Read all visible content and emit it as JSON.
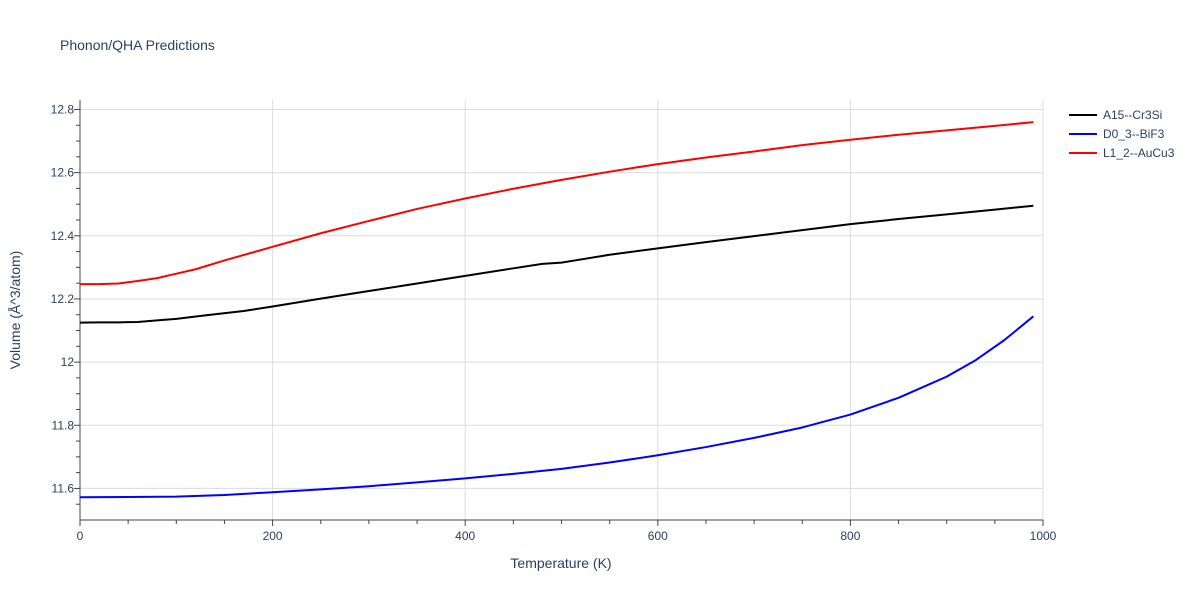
{
  "chart_data": {
    "type": "line",
    "title": "Phonon/QHA Predictions",
    "xlabel": "Temperature (K)",
    "ylabel": "Volume (Å^3/atom)",
    "xlim": [
      0,
      1000
    ],
    "ylim": [
      11.5,
      12.83
    ],
    "x_ticks": [
      0,
      200,
      400,
      600,
      800,
      1000
    ],
    "y_ticks": [
      11.6,
      11.8,
      12,
      12.2,
      12.4,
      12.6,
      12.8
    ],
    "x_tick_labels": [
      "0",
      "200",
      "400",
      "600",
      "800",
      "1000"
    ],
    "y_tick_labels": [
      "11.6",
      "11.8",
      "12",
      "12.2",
      "12.4",
      "12.6",
      "12.8"
    ],
    "grid": true,
    "legend_position": "top-right",
    "series": [
      {
        "name": "A15--Cr3Si",
        "color": "#000000",
        "x": [
          0,
          20,
          40,
          60,
          80,
          100,
          130,
          170,
          200,
          250,
          300,
          350,
          400,
          450,
          480,
          500,
          510,
          550,
          600,
          650,
          700,
          750,
          800,
          850,
          900,
          950,
          990
        ],
        "y": [
          12.125,
          12.126,
          12.126,
          12.127,
          12.132,
          12.137,
          12.148,
          12.162,
          12.176,
          12.201,
          12.225,
          12.249,
          12.273,
          12.297,
          12.311,
          12.315,
          12.32,
          12.34,
          12.36,
          12.38,
          12.399,
          12.418,
          12.437,
          12.453,
          12.468,
          12.483,
          12.495
        ]
      },
      {
        "name": "D0_3--BiF3",
        "color": "#0000ff",
        "x": [
          0,
          50,
          100,
          150,
          200,
          250,
          300,
          350,
          400,
          450,
          500,
          550,
          600,
          650,
          700,
          750,
          800,
          850,
          900,
          930,
          960,
          990
        ],
        "y": [
          11.572,
          11.573,
          11.574,
          11.579,
          11.588,
          11.597,
          11.607,
          11.619,
          11.632,
          11.646,
          11.662,
          11.682,
          11.705,
          11.731,
          11.76,
          11.793,
          11.834,
          11.887,
          11.954,
          12.006,
          12.07,
          12.145
        ]
      },
      {
        "name": "L1_2--AuCu3",
        "color": "#ff0000",
        "x": [
          0,
          20,
          40,
          60,
          80,
          100,
          120,
          150,
          200,
          250,
          300,
          350,
          400,
          450,
          500,
          550,
          600,
          650,
          700,
          750,
          800,
          850,
          900,
          950,
          990
        ],
        "y": [
          12.247,
          12.247,
          12.249,
          12.257,
          12.266,
          12.28,
          12.294,
          12.322,
          12.365,
          12.408,
          12.447,
          12.485,
          12.518,
          12.549,
          12.577,
          12.603,
          12.627,
          12.648,
          12.667,
          12.687,
          12.704,
          12.72,
          12.734,
          12.748,
          12.76
        ]
      }
    ]
  }
}
